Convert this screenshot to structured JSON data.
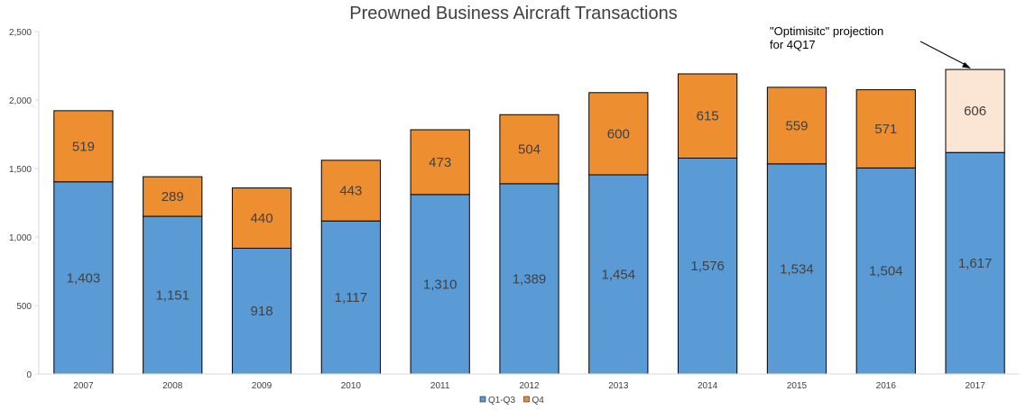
{
  "chart_data": {
    "type": "bar",
    "stacked": true,
    "title": "Preowned Business Aircraft Transactions",
    "categories": [
      "2007",
      "2008",
      "2009",
      "2010",
      "2011",
      "2012",
      "2013",
      "2014",
      "2015",
      "2016",
      "2017"
    ],
    "series": [
      {
        "name": "Q1-Q3",
        "color": "#5B9BD5",
        "values": [
          1403,
          1151,
          918,
          1117,
          1310,
          1389,
          1454,
          1576,
          1534,
          1504,
          1617
        ],
        "labels": [
          "1,403",
          "1,151",
          "918",
          "1,117",
          "1,310",
          "1,389",
          "1,454",
          "1,576",
          "1,534",
          "1,504",
          "1,617"
        ]
      },
      {
        "name": "Q4",
        "color": "#ED8F31",
        "projection_color": "#FBE5D4",
        "values": [
          519,
          289,
          440,
          443,
          473,
          504,
          600,
          615,
          559,
          571,
          606
        ],
        "labels": [
          "519",
          "289",
          "440",
          "443",
          "473",
          "504",
          "600",
          "615",
          "559",
          "571",
          "606"
        ]
      }
    ],
    "projection_category": "2017",
    "ylim": [
      0,
      2500
    ],
    "yticks": [
      0,
      500,
      1000,
      1500,
      2000,
      2500
    ],
    "ytick_labels": [
      "0",
      "500",
      "1,000",
      "1,500",
      "2,000",
      "2,500"
    ],
    "grid": false,
    "legend": "bottom-center",
    "annotation": {
      "lines": [
        "\"Optimisitc\" projection",
        "for 4Q17"
      ],
      "target_category": "2017"
    }
  }
}
